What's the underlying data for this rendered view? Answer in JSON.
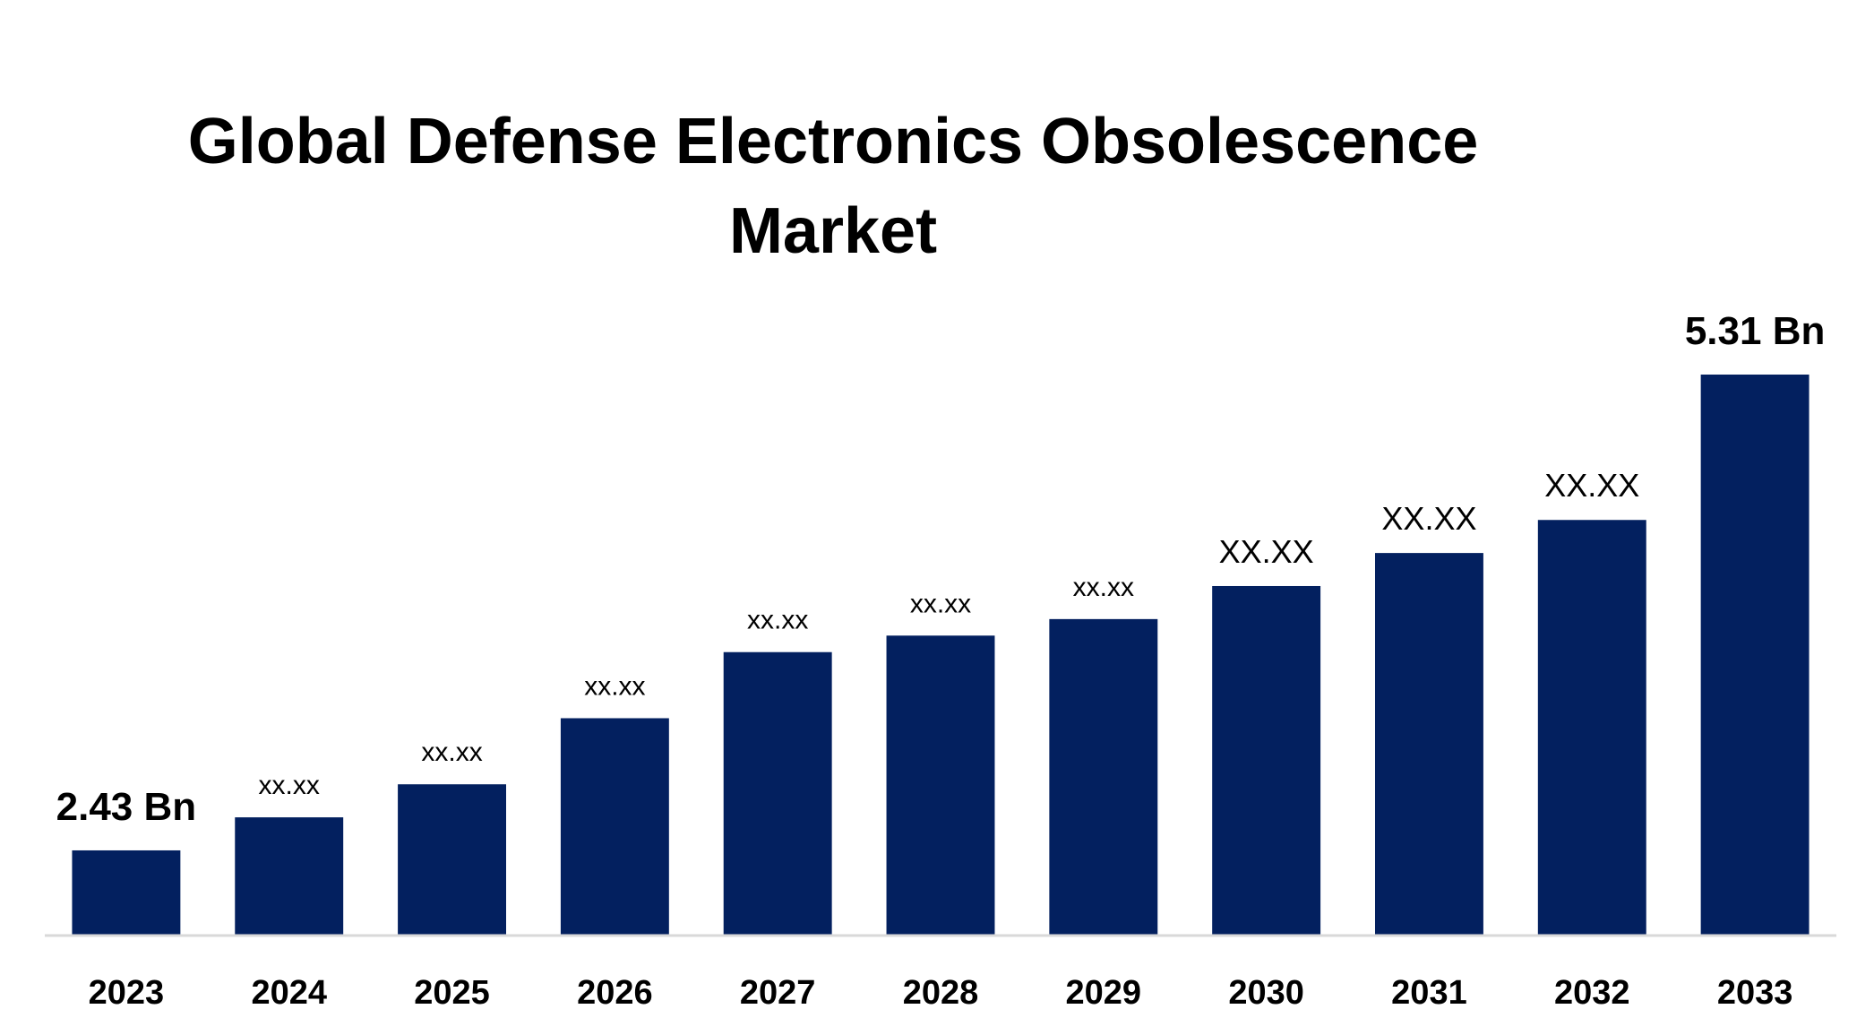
{
  "chart_data": {
    "type": "bar",
    "title": "Global Defense Electronics Obsolescence Market",
    "xlabel": "",
    "ylabel": "",
    "categories": [
      "2023",
      "2024",
      "2025",
      "2026",
      "2027",
      "2028",
      "2029",
      "2030",
      "2031",
      "2032",
      "2033"
    ],
    "values": [
      2.43,
      2.63,
      2.83,
      3.23,
      3.63,
      3.73,
      3.83,
      4.03,
      4.23,
      4.43,
      5.31
    ],
    "data_labels": [
      "2.43 Bn",
      "xx.xx",
      "xx.xx",
      "xx.xx",
      "xx.xx",
      "xx.xx",
      "xx.xx",
      "XX.XX",
      "XX.XX",
      "XX.XX",
      "5.31 Bn"
    ],
    "ylim": [
      1.92,
      5.31
    ],
    "grid": false,
    "legend": "none",
    "colors": {
      "bar": "#03205f",
      "axis": "#d9d9d9",
      "text": "#000000"
    }
  }
}
